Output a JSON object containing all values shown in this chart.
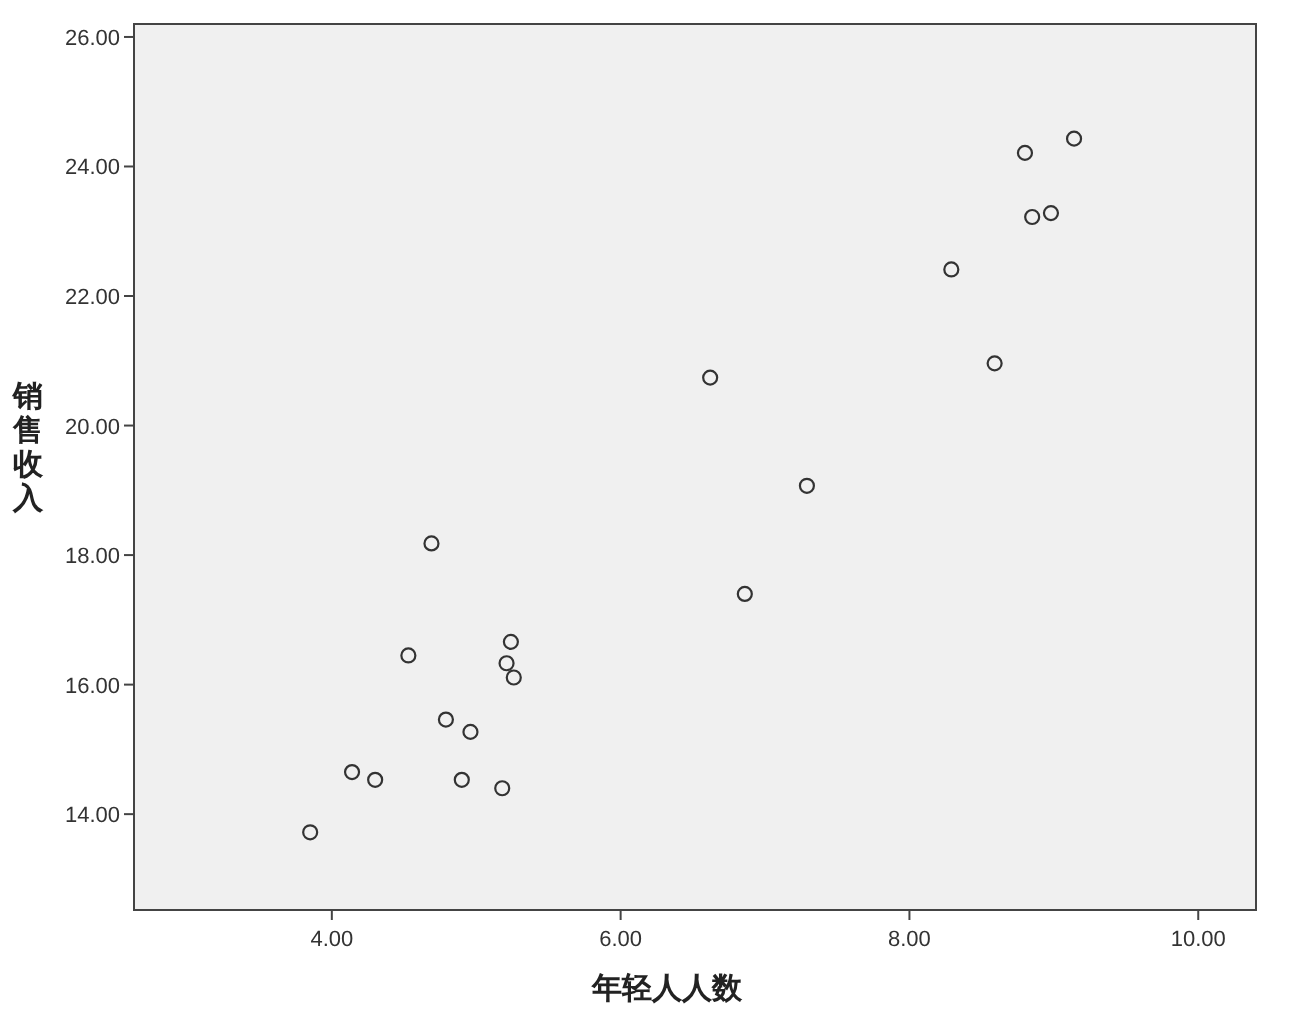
{
  "chart_data": {
    "type": "scatter",
    "xlabel": "年轻人人数",
    "ylabel": "销售收入",
    "x": [
      3.85,
      4.14,
      4.3,
      4.53,
      4.69,
      4.79,
      4.9,
      4.96,
      5.18,
      5.21,
      5.24,
      5.26,
      6.62,
      6.86,
      7.29,
      8.29,
      8.59,
      8.8,
      8.85,
      8.98,
      9.14
    ],
    "values": [
      13.72,
      14.65,
      14.53,
      16.45,
      18.18,
      15.46,
      14.53,
      15.27,
      14.4,
      16.33,
      16.66,
      16.11,
      20.74,
      17.4,
      19.07,
      22.41,
      20.96,
      24.21,
      23.22,
      23.28,
      24.43
    ],
    "color": "#333333",
    "marker": "circle",
    "xlim": [
      2.63,
      10.4
    ],
    "ylim": [
      12.52,
      26.2
    ],
    "xticks": [
      {
        "value": 4,
        "label": "4.00"
      },
      {
        "value": 6,
        "label": "6.00"
      },
      {
        "value": 8,
        "label": "8.00"
      },
      {
        "value": 10,
        "label": "10.00"
      }
    ],
    "yticks": [
      {
        "value": 14,
        "label": "14.00"
      },
      {
        "value": 16,
        "label": "16.00"
      },
      {
        "value": 18,
        "label": "18.00"
      },
      {
        "value": 20,
        "label": "20.00"
      },
      {
        "value": 22,
        "label": "22.00"
      },
      {
        "value": 24,
        "label": "24.00"
      },
      {
        "value": 26,
        "label": "26.00"
      }
    ]
  }
}
